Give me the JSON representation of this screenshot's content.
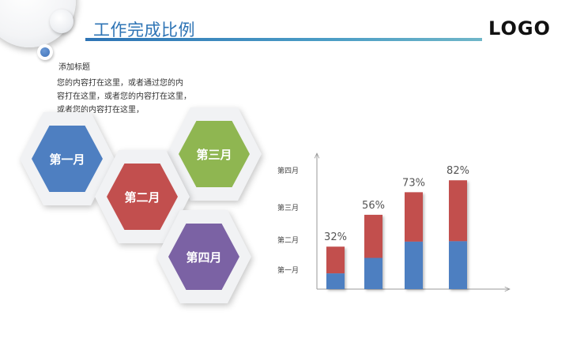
{
  "header": {
    "title": "工作完成比例",
    "logo": "LOGO"
  },
  "content": {
    "subtitle": "添加标题",
    "body_lines": [
      "您的内容打在这里，或者通过您的内",
      "容打在这里，或者您的内容打在这里，",
      "或者您的内容打在这里，"
    ]
  },
  "hexagons": [
    {
      "label": "第一月",
      "color": "#4e7fc1"
    },
    {
      "label": "第二月",
      "color": "#c24f4e"
    },
    {
      "label": "第三月",
      "color": "#8fb651"
    },
    {
      "label": "第四月",
      "color": "#7b62a4"
    }
  ],
  "chart_data": {
    "type": "bar",
    "stacked": true,
    "y_tick_labels": [
      "第一月",
      "第二月",
      "第三月",
      "第四月"
    ],
    "data_labels": [
      "32%",
      "56%",
      "73%",
      "82%"
    ],
    "values": [
      32,
      56,
      73,
      82
    ],
    "blue_share": [
      0.37,
      0.42,
      0.49,
      0.44
    ],
    "colors": {
      "bottom": "#4e7fc1",
      "top": "#c24f4e"
    },
    "grid": false,
    "legend": "none"
  }
}
